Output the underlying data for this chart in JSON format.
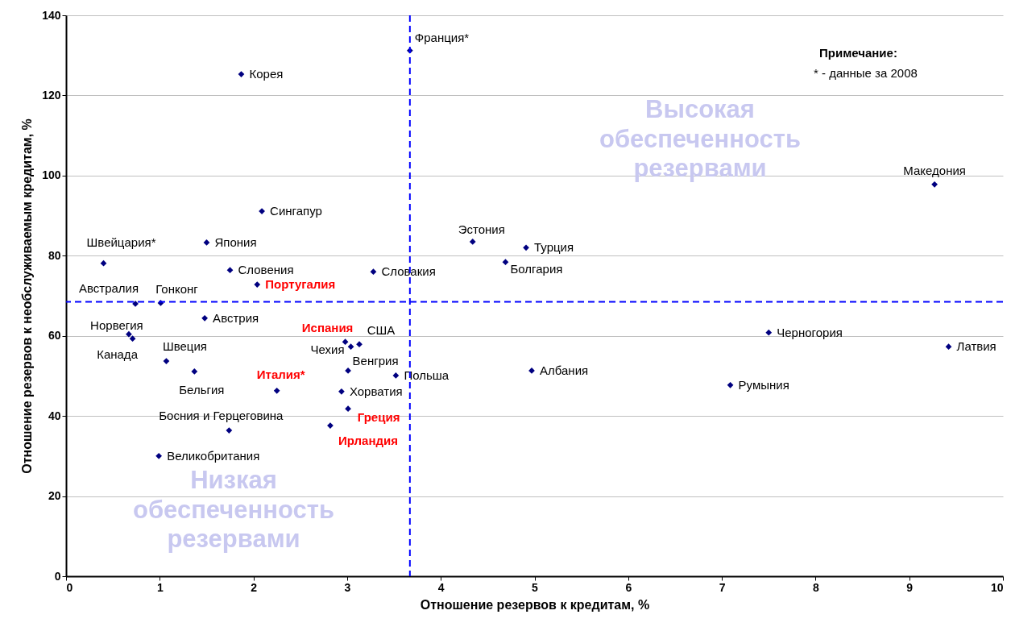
{
  "chart_data": {
    "type": "scatter",
    "xlabel": "Отношение резервов к кредитам, %",
    "ylabel": "Отношение резервов к необслуживаемым кредитам, %",
    "xlim": [
      0,
      10
    ],
    "xticks": [
      0,
      1,
      2,
      3,
      4,
      5,
      6,
      7,
      8,
      9,
      10
    ],
    "ylim": [
      0,
      140
    ],
    "yticks": [
      0,
      20,
      40,
      60,
      80,
      100,
      120,
      140
    ],
    "grid": "y",
    "marker": "diamond",
    "series": [
      {
        "color": "#000080",
        "x": [
          3.67,
          1.87,
          2.09,
          1.5,
          0.4,
          1.75,
          3.28,
          0.74,
          1.01,
          1.48,
          0.67,
          0.71,
          1.07,
          1.37,
          1.74,
          0.99,
          3.04,
          3.13,
          3.01,
          3.52,
          2.94,
          4.34,
          4.91,
          4.69,
          4.97,
          9.27,
          7.5,
          9.42,
          7.09
        ],
        "values": [
          131.2,
          125.3,
          91.1,
          83.3,
          78.1,
          76.4,
          76.0,
          68.0,
          68.2,
          64.4,
          60.4,
          59.3,
          53.7,
          51.1,
          36.4,
          30.0,
          57.3,
          57.9,
          51.3,
          50.1,
          46.1,
          83.5,
          82.0,
          78.4,
          51.3,
          97.8,
          60.8,
          57.3,
          47.7
        ],
        "value_labels": [
          "Франция*",
          "Корея",
          "Сингапур",
          "Япония",
          "Швейцария*",
          "Словения",
          "Словакия",
          "Австралия",
          "Гонконг",
          "Австрия",
          "Норвегия",
          "Канада",
          "Швеция",
          "Бельгия",
          "Босния и Герцеговина",
          "Великобритания",
          "Чехия",
          "США",
          "Венгрия",
          "Польша",
          "Хорватия",
          "Эстония",
          "Турция",
          "Болгария",
          "Албания",
          "Македония",
          "Черногория",
          "Латвия",
          "Румыния"
        ]
      },
      {
        "color": "#000080",
        "x": [
          2.04,
          2.98,
          2.25,
          3.01,
          2.82
        ],
        "values": [
          72.8,
          58.5,
          46.3,
          41.8,
          37.6
        ],
        "value_labels": [
          "Португалия",
          "Испания",
          "Италия*",
          "Греция",
          "Ирландия"
        ]
      }
    ],
    "ref_lines": [
      {
        "axis": "x",
        "value": 3.67,
        "color": "#0000ff",
        "line_style": "dashed"
      },
      {
        "axis": "y",
        "value": 68.5,
        "color": "#0000ff",
        "line_style": "dashed"
      }
    ],
    "annotations": [
      "Высокая обеспеченность резервами",
      "Низкая обеспеченность резервами",
      "Примечание:",
      "* - данные за 2008"
    ]
  }
}
